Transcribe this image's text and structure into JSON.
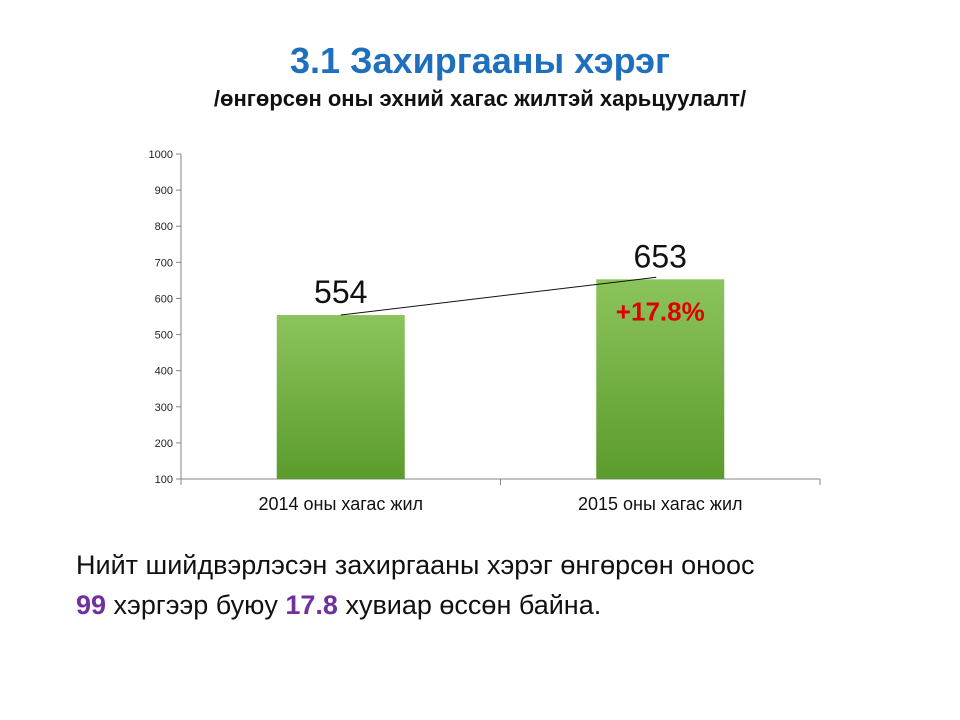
{
  "title": "3.1 Захиргааны хэрэг",
  "subtitle": "/өнгөрсөн оны эхний хагас жилтэй харьцуулалт/",
  "chart_data": {
    "type": "bar",
    "title": "",
    "xlabel": "",
    "ylabel": "",
    "categories": [
      "2014 оны хагас жил",
      "2015 оны хагас жил"
    ],
    "values": [
      554,
      653
    ],
    "data_labels": [
      "554",
      "653"
    ],
    "ylim": [
      100,
      1000
    ],
    "yticks": [
      100,
      200,
      300,
      400,
      500,
      600,
      700,
      800,
      900,
      1000
    ],
    "grid": false,
    "legend": "none",
    "annotation": "+17.8%",
    "trend_line": true,
    "bar_color": "#6aae3c",
    "annotation_color": "#e00000"
  },
  "summary": {
    "line1": "Нийт шийдвэрлэсэн захиргааны хэрэг өнгөрсөн оноос",
    "num1": "99",
    "mid": " хэргээр буюу ",
    "num2": "17.8",
    "end": " хувиар өссөн байна.",
    "highlight_color": "#7030a0"
  }
}
